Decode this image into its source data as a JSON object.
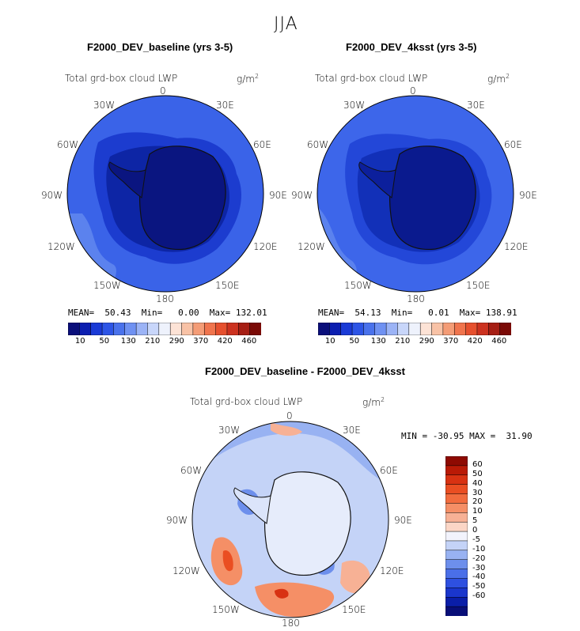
{
  "figure": {
    "season": "JJA",
    "var_label": "Total grd-box cloud LWP",
    "units_base": "g/m",
    "units_sup": "2"
  },
  "longitude_labels": {
    "top": "0",
    "n30e": "30E",
    "n60e": "60E",
    "e90": "90E",
    "s120e": "120E",
    "s150e": "150E",
    "bottom": "180",
    "s150w": "150W",
    "s120w": "120W",
    "w90": "90W",
    "n60w": "60W",
    "n30w": "30W"
  },
  "panels": {
    "baseline": {
      "title": "F2000_DEV_baseline (yrs 3-5)",
      "stats": "MEAN=  50.43  Min=   0.00  Max= 132.01"
    },
    "ksst": {
      "title": "F2000_DEV_4ksst (yrs 3-5)",
      "stats": "MEAN=  54.13  Min=   0.01  Max= 138.91"
    },
    "diff": {
      "title": "F2000_DEV_baseline - F2000_DEV_4ksst",
      "stats": "MIN = -30.95 MAX =  31.90"
    }
  },
  "chart_data": [
    {
      "type": "heatmap",
      "title": "F2000_DEV_baseline (yrs 3-5)",
      "variable": "Total grd-box cloud LWP",
      "units": "g/m2",
      "projection": "south polar stereographic",
      "mean": 50.43,
      "min": 0.0,
      "max": 132.01,
      "colorbar": {
        "tick_labels": [
          "10",
          "50",
          "130",
          "210",
          "290",
          "370",
          "420",
          "460"
        ],
        "colors": [
          "#0a0f7a",
          "#0b1eb0",
          "#1a3ad6",
          "#2d55e6",
          "#4a72ec",
          "#6f91f2",
          "#9bb3f6",
          "#c8d6fa",
          "#eef2fc",
          "#fde3d6",
          "#f8c2a6",
          "#f49c76",
          "#f0744d",
          "#e6502e",
          "#cc3220",
          "#a61e14",
          "#7a0a06"
        ]
      }
    },
    {
      "type": "heatmap",
      "title": "F2000_DEV_4ksst (yrs 3-5)",
      "variable": "Total grd-box cloud LWP",
      "units": "g/m2",
      "projection": "south polar stereographic",
      "mean": 54.13,
      "min": 0.01,
      "max": 138.91,
      "colorbar": {
        "tick_labels": [
          "10",
          "50",
          "130",
          "210",
          "290",
          "370",
          "420",
          "460"
        ],
        "colors": [
          "#0a0f7a",
          "#0b1eb0",
          "#1a3ad6",
          "#2d55e6",
          "#4a72ec",
          "#6f91f2",
          "#9bb3f6",
          "#c8d6fa",
          "#eef2fc",
          "#fde3d6",
          "#f8c2a6",
          "#f49c76",
          "#f0744d",
          "#e6502e",
          "#cc3220",
          "#a61e14",
          "#7a0a06"
        ]
      }
    },
    {
      "type": "heatmap",
      "title": "F2000_DEV_baseline - F2000_DEV_4ksst",
      "variable": "Total grd-box cloud LWP",
      "units": "g/m2",
      "projection": "south polar stereographic",
      "min": -30.95,
      "max": 31.9,
      "colorbar": {
        "tick_labels": [
          "60",
          "50",
          "40",
          "30",
          "20",
          "10",
          "5",
          "0",
          "-5",
          "-10",
          "-20",
          "-30",
          "-40",
          "-50",
          "-60"
        ],
        "colors": [
          "#8e0a02",
          "#b91a06",
          "#d83212",
          "#ea4e22",
          "#f26c3e",
          "#f58f66",
          "#f7b195",
          "#fbd6c6",
          "#f2f3fc",
          "#c4d3f7",
          "#98b2f2",
          "#6d8fec",
          "#4a6fe8",
          "#2e50e0",
          "#1a36cc",
          "#0a1ea8",
          "#080e78"
        ]
      }
    }
  ]
}
